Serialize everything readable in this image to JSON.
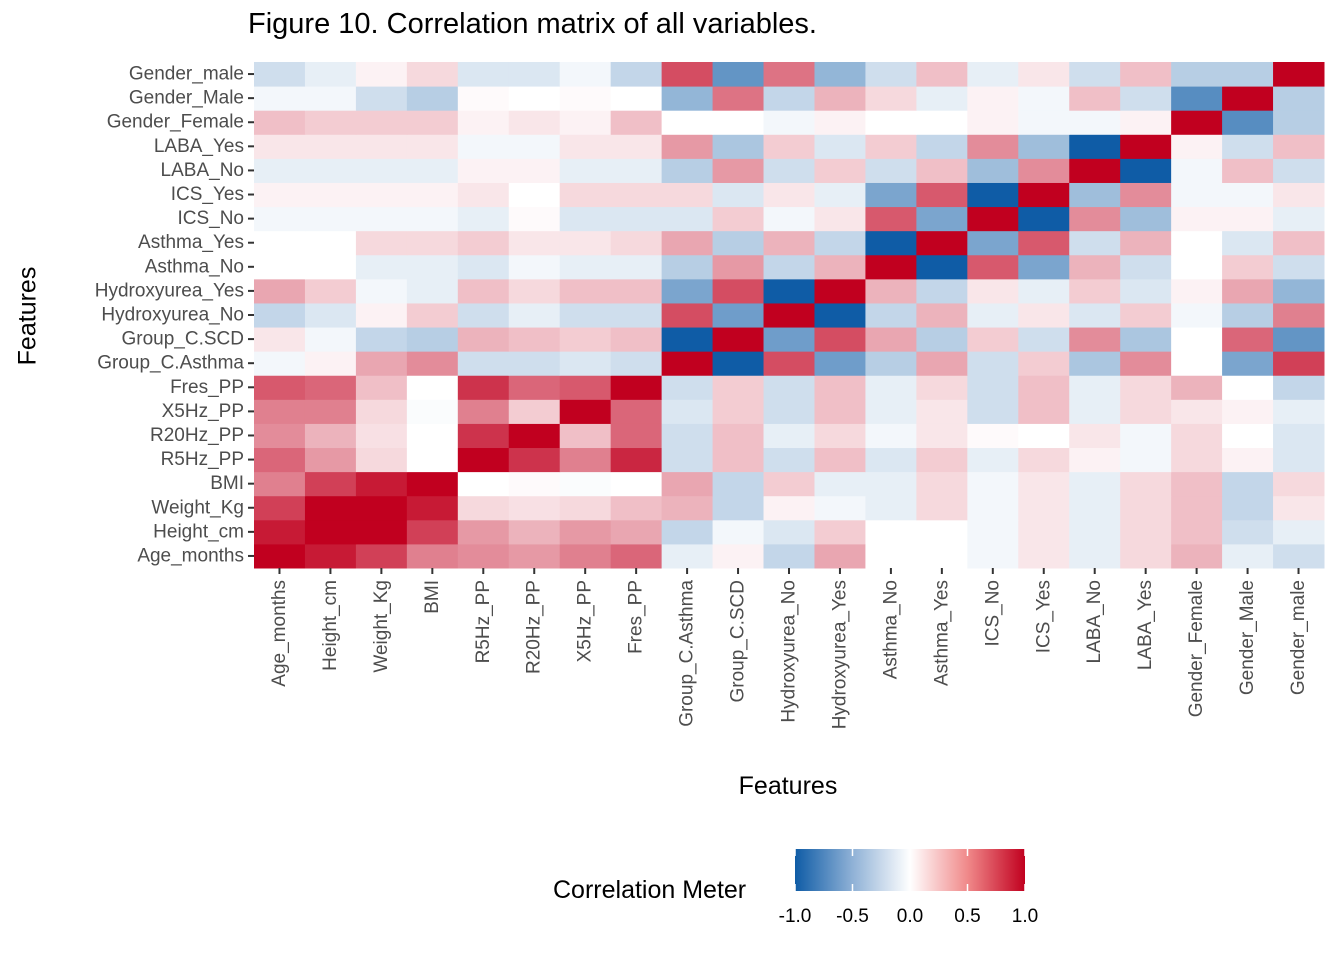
{
  "chart_data": {
    "type": "heatmap",
    "title": "Figure 10. Correlation matrix of all variables.",
    "xlabel": "Features",
    "ylabel": "Features",
    "x_categories": [
      "Age_months",
      "Height_cm",
      "Weight_Kg",
      "BMI",
      "R5Hz_PP",
      "R20Hz_PP",
      "X5Hz_PP",
      "Fres_PP",
      "Group_C.Asthma",
      "Group_C.SCD",
      "Hydroxyurea_No",
      "Hydroxyurea_Yes",
      "Asthma_No",
      "Asthma_Yes",
      "ICS_No",
      "ICS_Yes",
      "LABA_No",
      "LABA_Yes",
      "Gender_Female",
      "Gender_Male",
      "Gender_male"
    ],
    "y_categories": [
      "Age_months",
      "Height_cm",
      "Weight_Kg",
      "BMI",
      "R5Hz_PP",
      "R20Hz_PP",
      "X5Hz_PP",
      "Fres_PP",
      "Group_C.Asthma",
      "Group_C.SCD",
      "Hydroxyurea_No",
      "Hydroxyurea_Yes",
      "Asthma_No",
      "Asthma_Yes",
      "ICS_No",
      "ICS_Yes",
      "LABA_No",
      "LABA_Yes",
      "Gender_Female",
      "Gender_Male",
      "Gender_male"
    ],
    "values": [
      [
        1.0,
        0.9,
        0.75,
        0.5,
        0.45,
        0.4,
        0.5,
        0.6,
        -0.1,
        0.05,
        -0.25,
        0.35,
        0.0,
        0.0,
        -0.05,
        0.1,
        -0.1,
        0.15,
        0.3,
        -0.1,
        -0.2
      ],
      [
        0.9,
        1.0,
        1.0,
        0.75,
        0.4,
        0.3,
        0.4,
        0.35,
        -0.25,
        -0.05,
        -0.15,
        0.2,
        0.0,
        0.0,
        -0.05,
        0.1,
        -0.1,
        0.15,
        0.25,
        -0.2,
        -0.1
      ],
      [
        0.75,
        1.0,
        1.0,
        0.9,
        0.15,
        0.12,
        0.15,
        0.25,
        0.3,
        -0.25,
        0.05,
        -0.05,
        -0.1,
        0.15,
        -0.05,
        0.1,
        -0.1,
        0.15,
        0.25,
        -0.25,
        0.1
      ],
      [
        0.5,
        0.75,
        0.9,
        1.0,
        0.0,
        0.02,
        -0.02,
        0.0,
        0.35,
        -0.25,
        0.2,
        -0.1,
        -0.1,
        0.15,
        -0.05,
        0.1,
        -0.1,
        0.15,
        0.25,
        -0.25,
        0.15
      ],
      [
        0.6,
        0.4,
        0.15,
        0.0,
        1.0,
        0.8,
        0.5,
        0.85,
        -0.2,
        0.25,
        -0.2,
        0.25,
        -0.15,
        0.2,
        -0.1,
        0.15,
        0.05,
        -0.05,
        0.15,
        0.05,
        -0.15
      ],
      [
        0.45,
        0.3,
        0.12,
        0.0,
        0.8,
        1.0,
        0.25,
        0.6,
        -0.2,
        0.25,
        -0.1,
        0.15,
        -0.05,
        0.1,
        0.02,
        0.0,
        0.1,
        -0.05,
        0.15,
        0.0,
        -0.15
      ],
      [
        0.5,
        0.5,
        0.15,
        -0.02,
        0.5,
        0.2,
        1.0,
        0.6,
        -0.15,
        0.2,
        -0.2,
        0.25,
        -0.1,
        0.1,
        -0.2,
        0.25,
        -0.1,
        0.15,
        0.1,
        0.05,
        -0.1
      ],
      [
        0.65,
        0.6,
        0.25,
        0.0,
        0.8,
        0.6,
        0.65,
        1.0,
        -0.2,
        0.2,
        -0.2,
        0.25,
        -0.1,
        0.15,
        -0.2,
        0.25,
        -0.1,
        0.15,
        0.3,
        0.0,
        -0.25
      ],
      [
        -0.05,
        0.05,
        0.35,
        0.45,
        -0.2,
        -0.2,
        -0.15,
        -0.2,
        1.0,
        -1.0,
        0.7,
        -0.6,
        -0.3,
        0.35,
        -0.2,
        0.2,
        -0.35,
        0.45,
        0.0,
        -0.55,
        0.75
      ],
      [
        0.1,
        -0.05,
        -0.25,
        -0.3,
        0.3,
        0.25,
        0.2,
        0.25,
        -1.0,
        1.0,
        -0.6,
        0.7,
        0.35,
        -0.3,
        0.2,
        -0.2,
        0.45,
        -0.35,
        0.0,
        0.6,
        -0.65
      ],
      [
        -0.25,
        -0.15,
        0.05,
        0.2,
        -0.2,
        -0.1,
        -0.2,
        -0.2,
        0.7,
        -0.6,
        1.0,
        -1.0,
        -0.25,
        0.3,
        -0.1,
        0.1,
        -0.15,
        0.2,
        -0.05,
        -0.3,
        0.5
      ],
      [
        0.35,
        0.2,
        -0.05,
        -0.1,
        0.25,
        0.15,
        0.25,
        0.25,
        -0.55,
        0.7,
        -1.0,
        1.0,
        0.3,
        -0.25,
        0.1,
        -0.1,
        0.2,
        -0.15,
        0.05,
        0.35,
        -0.45
      ],
      [
        0.0,
        0.0,
        -0.1,
        -0.1,
        -0.15,
        -0.05,
        -0.1,
        -0.1,
        -0.3,
        0.4,
        -0.25,
        0.3,
        1.0,
        -1.0,
        0.65,
        -0.55,
        0.3,
        -0.2,
        0.0,
        0.2,
        -0.2
      ],
      [
        0.0,
        0.0,
        0.15,
        0.15,
        0.2,
        0.1,
        0.1,
        0.15,
        0.35,
        -0.3,
        0.3,
        -0.25,
        -1.0,
        1.0,
        -0.55,
        0.65,
        -0.2,
        0.3,
        0.0,
        -0.15,
        0.25
      ],
      [
        -0.05,
        -0.05,
        -0.05,
        -0.05,
        -0.1,
        0.02,
        -0.15,
        -0.15,
        -0.15,
        0.2,
        -0.05,
        0.1,
        0.65,
        -0.55,
        1.0,
        -1.0,
        0.45,
        -0.4,
        0.05,
        0.05,
        -0.1
      ],
      [
        0.05,
        0.05,
        0.05,
        0.05,
        0.1,
        0.0,
        0.15,
        0.15,
        0.15,
        -0.15,
        0.1,
        -0.1,
        -0.55,
        0.65,
        -1.0,
        1.0,
        -0.4,
        0.45,
        -0.05,
        -0.05,
        0.1
      ],
      [
        -0.1,
        -0.1,
        -0.1,
        -0.1,
        0.05,
        0.05,
        -0.1,
        -0.1,
        -0.3,
        0.4,
        -0.2,
        0.2,
        -0.2,
        0.25,
        -0.4,
        0.45,
        1.0,
        -1.0,
        -0.05,
        0.25,
        -0.2
      ],
      [
        0.1,
        0.1,
        0.1,
        0.1,
        -0.05,
        -0.05,
        0.1,
        0.1,
        0.4,
        -0.35,
        0.2,
        -0.15,
        0.2,
        -0.25,
        0.45,
        -0.4,
        -1.0,
        1.0,
        0.05,
        -0.2,
        0.25
      ],
      [
        0.25,
        0.2,
        0.2,
        0.2,
        0.05,
        0.1,
        0.05,
        0.25,
        0.0,
        0.0,
        -0.05,
        0.05,
        0.0,
        0.0,
        0.05,
        -0.05,
        -0.05,
        0.05,
        1.0,
        -0.7,
        -0.3
      ],
      [
        -0.05,
        -0.05,
        -0.2,
        -0.3,
        0.02,
        0.0,
        0.02,
        0.0,
        -0.45,
        0.55,
        -0.25,
        0.3,
        0.15,
        -0.1,
        0.05,
        -0.05,
        0.25,
        -0.2,
        -0.7,
        1.0,
        -0.3
      ],
      [
        -0.2,
        -0.1,
        0.05,
        0.15,
        -0.15,
        -0.15,
        -0.05,
        -0.25,
        0.7,
        -0.65,
        0.55,
        -0.45,
        -0.2,
        0.25,
        -0.1,
        0.1,
        -0.2,
        0.25,
        -0.3,
        -0.3,
        1.0
      ]
    ],
    "color_scale": {
      "low": "#0f5ca6",
      "mid": "#ffffff",
      "high": "#c1001f",
      "domain": [
        -1,
        1
      ]
    },
    "legend": {
      "title": "Correlation Meter",
      "ticks": [
        "-1.0",
        "-0.5",
        "0.0",
        "0.5",
        "1.0"
      ],
      "placement": "bottom"
    }
  }
}
